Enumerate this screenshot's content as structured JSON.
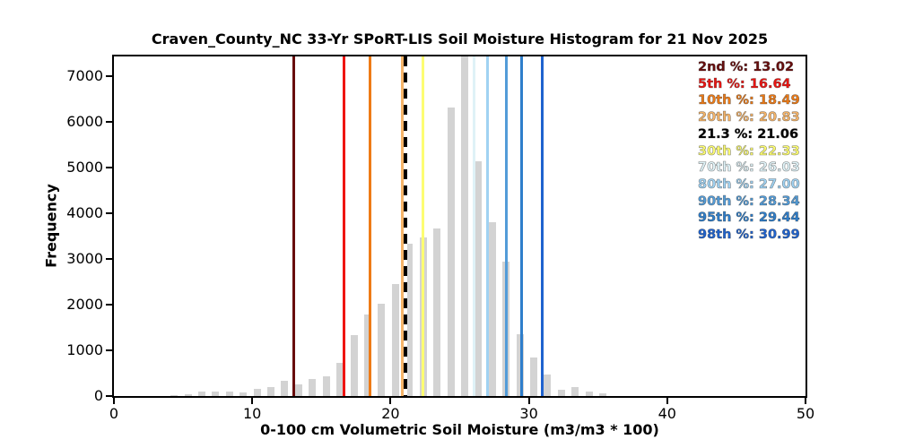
{
  "chart_data": {
    "type": "bar",
    "title": "Craven_County_NC 33-Yr SPoRT-LIS Soil Moisture Histogram for 21 Nov 2025",
    "xlabel": "0-100 cm Volumetric Soil Moisture (m3/m3 * 100)",
    "ylabel": "Frequency",
    "xlim": [
      0,
      50
    ],
    "ylim": [
      0,
      7430
    ],
    "x_ticks": [
      0,
      10,
      20,
      30,
      40,
      50
    ],
    "y_ticks": [
      0,
      1000,
      2000,
      3000,
      4000,
      5000,
      6000,
      7000
    ],
    "grid": false,
    "bar_color": "#d3d3d3",
    "bar_draw_width": 0.5,
    "bin_centers": [
      4.35,
      5.35,
      6.35,
      7.35,
      8.35,
      9.35,
      10.35,
      11.35,
      12.35,
      13.35,
      14.35,
      15.35,
      16.35,
      17.35,
      18.35,
      19.35,
      20.35,
      21.35,
      22.35,
      23.35,
      24.35,
      25.35,
      26.35,
      27.35,
      28.35,
      29.35,
      30.35,
      31.35,
      32.35,
      33.35,
      34.35,
      35.35
    ],
    "frequencies": [
      25,
      40,
      90,
      105,
      95,
      80,
      155,
      195,
      335,
      260,
      370,
      430,
      720,
      1340,
      1790,
      2020,
      2460,
      3340,
      3480,
      3665,
      6320,
      7600,
      5140,
      3805,
      2950,
      1360,
      850,
      465,
      140,
      190,
      105,
      65
    ],
    "tallest_bar_clipped_at_top": true,
    "legend_position": "upper-right-inside",
    "percentile_lines": [
      {
        "label": "2nd %",
        "value": 13.02,
        "color": "#690d0d",
        "style": "solid"
      },
      {
        "label": "5th %",
        "value": 16.64,
        "color": "#ee1411",
        "style": "solid"
      },
      {
        "label": "10th %",
        "value": 18.49,
        "color": "#ee7b16",
        "style": "solid"
      },
      {
        "label": "20th %",
        "value": 20.83,
        "color": "#f5b469",
        "style": "solid"
      },
      {
        "label": "21.3 %",
        "value": 21.06,
        "color": "#000000",
        "style": "dashed"
      },
      {
        "label": "30th %",
        "value": 22.33,
        "color": "#fdfd72",
        "style": "solid"
      },
      {
        "label": "70th %",
        "value": 26.03,
        "color": "#dff2f7",
        "style": "solid"
      },
      {
        "label": "80th %",
        "value": 27.0,
        "color": "#a0d2f2",
        "style": "solid"
      },
      {
        "label": "90th %",
        "value": 28.34,
        "color": "#539cd8",
        "style": "solid"
      },
      {
        "label": "95th %",
        "value": 29.44,
        "color": "#2e7ecb",
        "style": "solid"
      },
      {
        "label": "98th %",
        "value": 30.99,
        "color": "#1f63cf",
        "style": "solid"
      }
    ]
  }
}
